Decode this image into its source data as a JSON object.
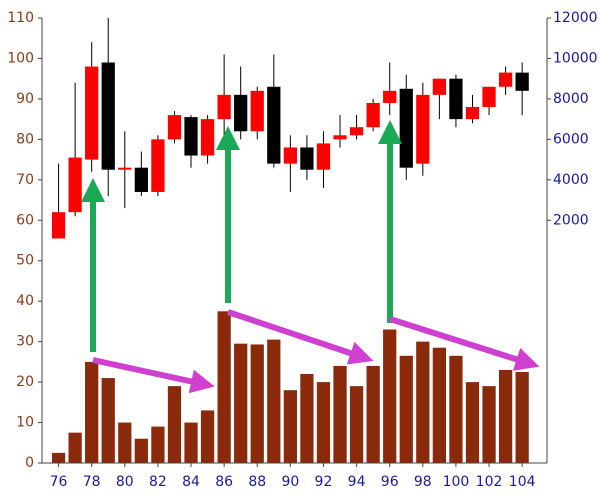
{
  "chart_data": {
    "type": "candlestick",
    "x": [
      76,
      77,
      78,
      79,
      80,
      81,
      82,
      83,
      84,
      85,
      86,
      87,
      88,
      89,
      90,
      91,
      92,
      93,
      94,
      95,
      96,
      97,
      98,
      99,
      100,
      101,
      102,
      103,
      104
    ],
    "xlim": [
      75,
      105.5
    ],
    "xticks": [
      76,
      78,
      80,
      82,
      84,
      86,
      88,
      90,
      92,
      94,
      96,
      98,
      100,
      102,
      104
    ],
    "ylim": [
      0,
      110
    ],
    "yticks": [
      0,
      10,
      20,
      30,
      40,
      50,
      60,
      70,
      80,
      90,
      100,
      110
    ],
    "y2lim": [
      -10000,
      12000
    ],
    "y2ticks": [
      2000,
      4000,
      6000,
      8000,
      10000,
      12000
    ],
    "candles": {
      "axis": "y2",
      "up_color": "#ff0000",
      "down_color": "#000000",
      "open": [
        1100,
        2400,
        5000,
        9800,
        4500,
        4600,
        3400,
        6000,
        7100,
        5200,
        7000,
        8200,
        6400,
        8600,
        4800,
        5600,
        4500,
        6000,
        6200,
        6600,
        7800,
        8500,
        4800,
        8200,
        9000,
        7000,
        7600,
        8600,
        9300
      ],
      "close": [
        2400,
        5100,
        9600,
        4500,
        4600,
        3400,
        6000,
        7200,
        5200,
        7000,
        8200,
        6400,
        8400,
        4800,
        5600,
        4500,
        5800,
        6200,
        6600,
        7800,
        8400,
        4600,
        8200,
        9000,
        7000,
        7600,
        8600,
        9300,
        8400
      ],
      "high": [
        4800,
        8800,
        10800,
        12000,
        6400,
        5400,
        6200,
        7400,
        7200,
        7200,
        10200,
        9600,
        8600,
        10200,
        6200,
        6200,
        6400,
        7200,
        7200,
        8000,
        9800,
        9200,
        8800,
        9000,
        9200,
        8200,
        8600,
        9600,
        9800
      ],
      "low": [
        1100,
        2200,
        4400,
        3200,
        2600,
        3200,
        3200,
        5800,
        4600,
        4800,
        5800,
        6000,
        6000,
        4600,
        3400,
        4000,
        3600,
        5600,
        6000,
        6400,
        7200,
        4000,
        4200,
        7000,
        6600,
        6800,
        7200,
        8200,
        7200
      ]
    },
    "bars": {
      "color": "#8b2a0a",
      "values": [
        2.5,
        7.5,
        25,
        21,
        10,
        6,
        9,
        19,
        10,
        13,
        37.5,
        29.5,
        29.3,
        30.5,
        18,
        22,
        20,
        24,
        19,
        24,
        33,
        26.5,
        30,
        28.5,
        26.5,
        20,
        19,
        23,
        22.5
      ]
    }
  }
}
